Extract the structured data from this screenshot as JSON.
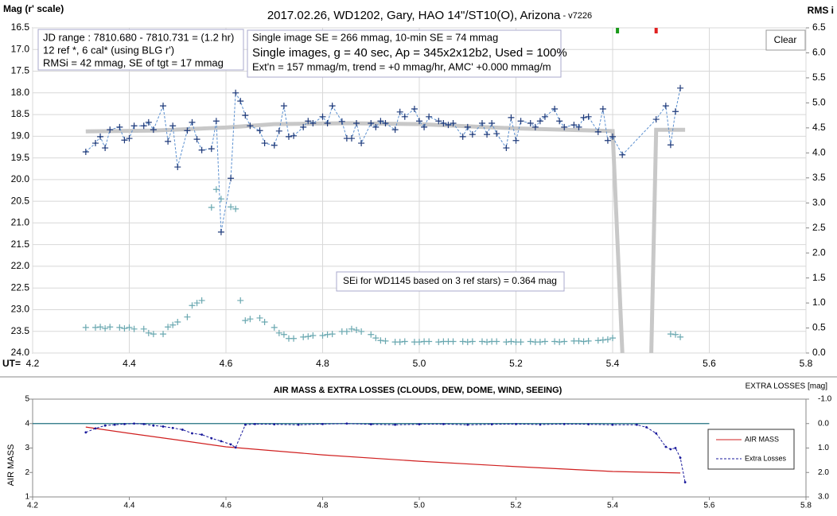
{
  "chart_data": [
    {
      "type": "line",
      "title": "2017.02.26, WD1202, Gary, HAO 14\"/ST10(O), Arizona",
      "subtitle": " - v7226",
      "ylabel": "Mag (r' scale)",
      "y2label": "RMS i",
      "xlabel": "UT=",
      "xlim": [
        4.2,
        5.8
      ],
      "xticks": [
        4.2,
        4.4,
        4.6,
        4.8,
        {
          "value": 5.0,
          "label": "5.0"
        },
        5.2,
        5.4,
        5.6,
        5.8
      ],
      "ylim": [
        16.5,
        24.0
      ],
      "y_inverted": true,
      "yticks": [
        16.5,
        {
          "value": 17.0,
          "label": "17.0"
        },
        17.5,
        {
          "value": 18.0,
          "label": "18.0"
        },
        18.5,
        {
          "value": 19.0,
          "label": "19.0"
        },
        19.5,
        {
          "value": 20.0,
          "label": "20.0"
        },
        20.5,
        {
          "value": 21.0,
          "label": "21.0"
        },
        21.5,
        {
          "value": 22.0,
          "label": "22.0"
        },
        22.5,
        {
          "value": 23.0,
          "label": "23.0"
        },
        23.5,
        {
          "value": 24.0,
          "label": "24.0"
        }
      ],
      "y2lim": [
        0,
        6.5
      ],
      "y2ticks": [
        {
          "value": 0,
          "label": "0.0"
        },
        0.5,
        {
          "value": 1,
          "label": "1.0"
        },
        1.5,
        {
          "value": 2,
          "label": "2.0"
        },
        2.5,
        {
          "value": 3,
          "label": "3.0"
        },
        3.5,
        {
          "value": 4,
          "label": "4.0"
        },
        4.5,
        {
          "value": 5,
          "label": "5.0"
        },
        5.5,
        {
          "value": 6,
          "label": "6.0"
        },
        6.5
      ],
      "grid": true,
      "series": [
        {
          "style": "thick",
          "color": "#c8c8c8",
          "x": [
            4.31,
            4.45,
            4.6,
            4.7,
            4.85,
            5.0,
            5.2,
            5.4,
            5.42,
            5.45,
            5.48,
            5.49,
            5.55
          ],
          "values": [
            18.89,
            18.87,
            18.8,
            18.72,
            18.7,
            18.72,
            18.82,
            18.88,
            24.0,
            null,
            24.0,
            18.85,
            18.85
          ]
        },
        {
          "style": "plus",
          "color": "#6aa8b0",
          "axis": "y2",
          "x": [
            4.31,
            4.33,
            4.34,
            4.35,
            4.36,
            4.38,
            4.39,
            4.4,
            4.41,
            4.43,
            4.44,
            4.45,
            4.47,
            4.48,
            4.49,
            4.5,
            4.52,
            4.53,
            4.54,
            4.55,
            4.57,
            4.58,
            4.59,
            4.61,
            4.62,
            4.63,
            4.64,
            4.65,
            4.67,
            4.68,
            4.7,
            4.71,
            4.72,
            4.73,
            4.74,
            4.76,
            4.77,
            4.78,
            4.8,
            4.81,
            4.82,
            4.84,
            4.85,
            4.86,
            4.87,
            4.88,
            4.9,
            4.91,
            4.92,
            4.93,
            4.95,
            4.96,
            4.97,
            4.99,
            5.0,
            5.01,
            5.02,
            5.04,
            5.05,
            5.06,
            5.07,
            5.09,
            5.1,
            5.11,
            5.13,
            5.14,
            5.15,
            5.16,
            5.18,
            5.19,
            5.2,
            5.21,
            5.23,
            5.24,
            5.25,
            5.26,
            5.28,
            5.29,
            5.3,
            5.32,
            5.33,
            5.34,
            5.35,
            5.37,
            5.38,
            5.39,
            5.4,
            5.52,
            5.53,
            5.54
          ],
          "values": [
            0.51,
            0.51,
            0.52,
            0.49,
            0.52,
            0.51,
            0.49,
            0.51,
            0.48,
            0.48,
            0.4,
            0.38,
            0.38,
            0.52,
            0.56,
            0.62,
            0.72,
            0.95,
            1.0,
            1.05,
            2.91,
            3.27,
            3.08,
            2.92,
            2.88,
            1.05,
            0.65,
            0.68,
            0.7,
            0.62,
            0.51,
            0.4,
            0.37,
            0.29,
            0.29,
            0.32,
            0.33,
            0.35,
            0.35,
            0.37,
            0.38,
            0.43,
            0.43,
            0.48,
            0.46,
            0.43,
            0.37,
            0.3,
            0.25,
            0.24,
            0.22,
            0.22,
            0.23,
            0.22,
            0.22,
            0.23,
            0.23,
            0.22,
            0.23,
            0.23,
            0.23,
            0.23,
            0.22,
            0.23,
            0.23,
            0.22,
            0.23,
            0.23,
            0.22,
            0.23,
            0.22,
            0.22,
            0.23,
            0.22,
            0.22,
            0.23,
            0.23,
            0.22,
            0.23,
            0.24,
            0.24,
            0.23,
            0.24,
            0.25,
            0.26,
            0.27,
            0.3,
            0.38,
            0.37,
            0.32
          ]
        },
        {
          "style": "plus-dashed",
          "color": "#1f3a7a",
          "line_color": "#5a8fd0",
          "x": [
            4.31,
            4.33,
            4.34,
            4.35,
            4.36,
            4.38,
            4.39,
            4.4,
            4.41,
            4.43,
            4.44,
            4.45,
            4.47,
            4.48,
            4.49,
            4.5,
            4.52,
            4.53,
            4.54,
            4.55,
            4.57,
            4.58,
            4.59,
            4.61,
            4.62,
            4.63,
            4.64,
            4.65,
            4.67,
            4.68,
            4.7,
            4.71,
            4.72,
            4.73,
            4.74,
            4.76,
            4.77,
            4.78,
            4.8,
            4.81,
            4.82,
            4.84,
            4.85,
            4.86,
            4.87,
            4.88,
            4.9,
            4.91,
            4.92,
            4.93,
            4.95,
            4.96,
            4.97,
            4.99,
            5.0,
            5.01,
            5.02,
            5.04,
            5.05,
            5.06,
            5.07,
            5.09,
            5.1,
            5.11,
            5.13,
            5.14,
            5.15,
            5.16,
            5.18,
            5.19,
            5.2,
            5.21,
            5.23,
            5.24,
            5.25,
            5.26,
            5.28,
            5.29,
            5.3,
            5.32,
            5.33,
            5.34,
            5.35,
            5.37,
            5.38,
            5.39,
            5.4,
            5.42,
            5.49,
            5.51,
            5.52,
            5.53,
            5.54
          ],
          "values": [
            19.36,
            19.16,
            19.01,
            19.27,
            18.85,
            18.79,
            19.09,
            19.05,
            18.76,
            18.76,
            18.68,
            18.85,
            18.3,
            19.12,
            18.76,
            19.71,
            18.87,
            18.68,
            19.07,
            19.32,
            19.29,
            18.65,
            21.21,
            19.97,
            18.0,
            18.19,
            18.52,
            18.76,
            18.87,
            19.16,
            19.21,
            18.88,
            18.3,
            19.01,
            18.99,
            18.79,
            18.65,
            18.7,
            18.55,
            18.7,
            18.3,
            18.66,
            19.05,
            19.05,
            18.7,
            19.16,
            18.7,
            18.79,
            18.65,
            18.7,
            18.85,
            18.44,
            18.55,
            18.37,
            18.65,
            18.79,
            18.55,
            18.65,
            18.7,
            18.74,
            18.7,
            19.01,
            18.79,
            18.96,
            18.7,
            18.96,
            18.7,
            18.94,
            19.27,
            18.57,
            19.1,
            18.65,
            18.7,
            18.79,
            18.65,
            18.55,
            18.37,
            18.65,
            18.79,
            18.74,
            18.79,
            18.57,
            18.55,
            18.9,
            18.37,
            19.1,
            19.01,
            19.43,
            18.61,
            18.3,
            19.2,
            18.43,
            17.89
          ]
        }
      ],
      "markers": [
        {
          "x": 5.41,
          "color": "#1a9a1a"
        },
        {
          "x": 5.49,
          "color": "#e02020"
        }
      ],
      "annotations": [
        [
          "JD range : 7810.680 - 7810.731 = (1.2 hr)",
          "12 ref *, 6 cal* (using BLG r')",
          "RMSi = 42 mmag, SE of tgt = 17 mmag"
        ],
        [
          "Single image SE = 266 mmag, 10-min SE = 74 mmag",
          "Single images, g = 40 sec, Ap = 345x2x12b2, Used = 100%",
          "Ext'n = 157 mmag/m, trend = +0 mmag/hr, AMC' +0.000 mmag/m"
        ],
        [
          "SEi for WD1145 based on 3 ref stars) = 0.364 mag"
        ]
      ],
      "button": "Clear"
    },
    {
      "type": "line",
      "title": "AIR MASS & EXTRA LOSSES (CLOUDS, DEW, DOME, WIND, SEEING)",
      "ylabel": "AIR MASS",
      "y2label": "EXTRA LOSSES [mag]",
      "xlim": [
        4.2,
        5.8
      ],
      "xticks": [
        4.2,
        4.4,
        4.6,
        4.8,
        {
          "value": 5.0,
          "label": "5.0"
        },
        5.2,
        5.4,
        5.6,
        5.8
      ],
      "ylim": [
        1,
        5
      ],
      "yticks": [
        1,
        2,
        3,
        4,
        5
      ],
      "y2lim": [
        -1.0,
        3.0
      ],
      "y2_inverted": true,
      "y2ticks": [
        {
          "value": -1.0,
          "label": "-1.0"
        },
        {
          "value": 0.0,
          "label": "0.0"
        },
        {
          "value": 1.0,
          "label": "1.0"
        },
        {
          "value": 2.0,
          "label": "2.0"
        },
        {
          "value": 3.0,
          "label": "3.0"
        }
      ],
      "grid": false,
      "reference_lines": [
        {
          "axis": "y2",
          "value": 0.0,
          "x_end": 5.6,
          "color": "#1f6f7f"
        }
      ],
      "legend": "right",
      "series": [
        {
          "name": "AIR MASS",
          "style": "line",
          "color": "#d02020",
          "x": [
            4.31,
            4.4,
            4.5,
            4.6,
            4.8,
            5.0,
            5.2,
            5.4,
            5.54
          ],
          "values": [
            3.86,
            3.6,
            3.33,
            3.05,
            2.72,
            2.46,
            2.24,
            2.04,
            1.98
          ]
        },
        {
          "name": "Extra Losses",
          "style": "dot-dashed",
          "color": "#1a1a9c",
          "axis": "y2",
          "x": [
            4.31,
            4.33,
            4.35,
            4.37,
            4.39,
            4.41,
            4.43,
            4.45,
            4.47,
            4.49,
            4.51,
            4.53,
            4.55,
            4.57,
            4.59,
            4.61,
            4.62,
            4.64,
            4.66,
            4.7,
            4.75,
            4.8,
            4.85,
            4.9,
            4.95,
            5.0,
            5.05,
            5.1,
            5.15,
            5.2,
            5.25,
            5.3,
            5.35,
            5.4,
            5.45,
            5.47,
            5.49,
            5.51,
            5.52,
            5.53,
            5.54,
            5.55
          ],
          "values": [
            0.36,
            0.2,
            0.08,
            0.05,
            0.02,
            0.0,
            0.02,
            0.08,
            0.12,
            0.18,
            0.25,
            0.4,
            0.45,
            0.6,
            0.72,
            0.85,
            0.98,
            0.05,
            0.02,
            0.03,
            0.05,
            0.02,
            0.0,
            0.03,
            0.05,
            0.03,
            0.02,
            0.05,
            0.03,
            0.02,
            0.04,
            0.02,
            0.03,
            0.05,
            0.05,
            0.15,
            0.4,
            0.95,
            1.05,
            1.0,
            1.4,
            2.4
          ]
        }
      ]
    }
  ]
}
